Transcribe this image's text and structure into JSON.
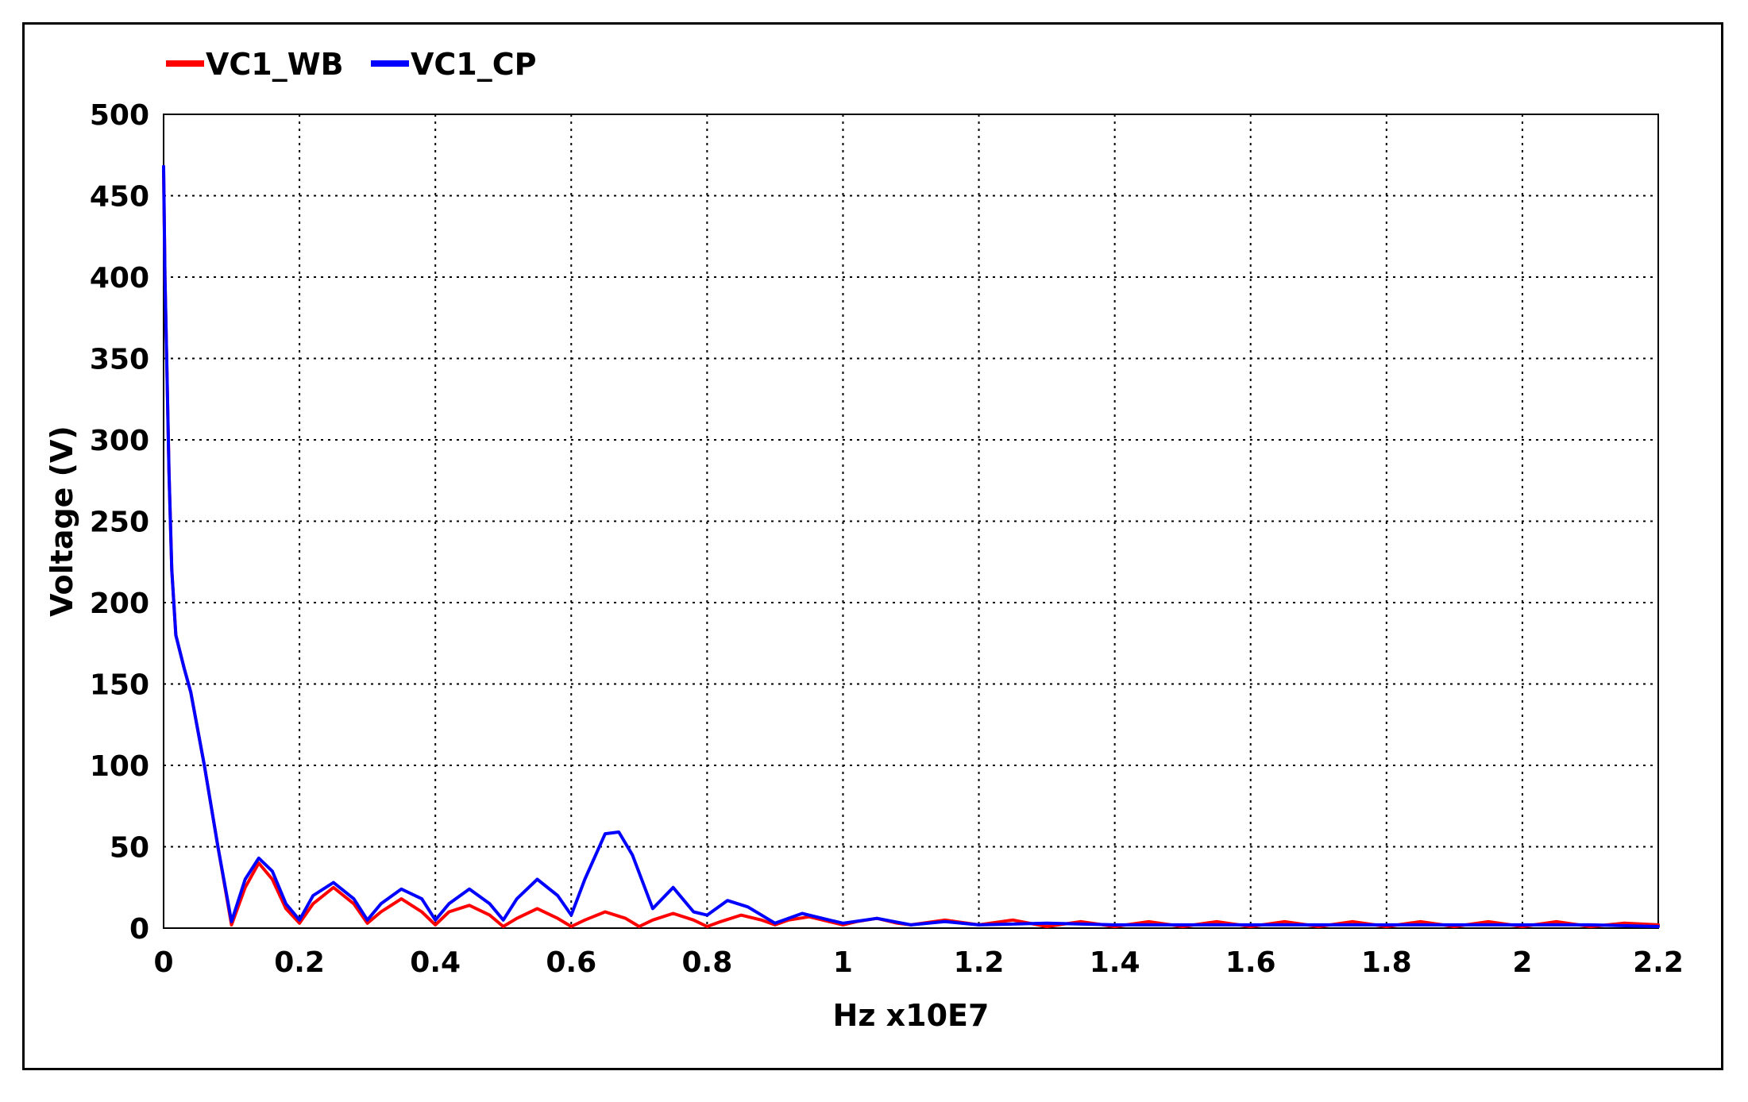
{
  "chart_data": {
    "type": "line",
    "title": "",
    "xlabel": "Hz x10E7",
    "ylabel": "Voltage (V)",
    "xlim": [
      0,
      2.2
    ],
    "ylim": [
      0,
      500
    ],
    "x_ticks": [
      0,
      0.2,
      0.4,
      0.6,
      0.8,
      1,
      1.2,
      1.4,
      1.6,
      1.8,
      2,
      2.2
    ],
    "x_tick_labels": [
      "0",
      "0.2",
      "0.4",
      "0.6",
      "0.8",
      "1",
      "1.2",
      "1.4",
      "1.6",
      "1.8",
      "2",
      "2.2"
    ],
    "y_ticks": [
      0,
      50,
      100,
      150,
      200,
      250,
      300,
      350,
      400,
      450,
      500
    ],
    "y_tick_labels": [
      "0",
      "50",
      "100",
      "150",
      "200",
      "250",
      "300",
      "350",
      "400",
      "450",
      "500"
    ],
    "grid": true,
    "legend_position": "top-left",
    "series": [
      {
        "name": "VC1_WB",
        "color": "#ff0000",
        "x": [
          0,
          0.002,
          0.005,
          0.008,
          0.012,
          0.018,
          0.03,
          0.04,
          0.06,
          0.08,
          0.1,
          0.12,
          0.14,
          0.16,
          0.18,
          0.2,
          0.22,
          0.25,
          0.28,
          0.3,
          0.32,
          0.35,
          0.38,
          0.4,
          0.42,
          0.45,
          0.48,
          0.5,
          0.52,
          0.55,
          0.58,
          0.6,
          0.62,
          0.65,
          0.68,
          0.7,
          0.72,
          0.75,
          0.78,
          0.8,
          0.82,
          0.85,
          0.88,
          0.9,
          0.92,
          0.95,
          0.98,
          1.0,
          1.02,
          1.05,
          1.08,
          1.1,
          1.15,
          1.2,
          1.25,
          1.3,
          1.35,
          1.4,
          1.45,
          1.5,
          1.55,
          1.6,
          1.65,
          1.7,
          1.75,
          1.8,
          1.85,
          1.9,
          1.95,
          2.0,
          2.05,
          2.1,
          2.15,
          2.2
        ],
        "values": [
          465,
          400,
          340,
          280,
          220,
          180,
          160,
          145,
          100,
          50,
          2,
          25,
          40,
          30,
          12,
          3,
          15,
          25,
          15,
          3,
          10,
          18,
          10,
          2,
          10,
          14,
          8,
          1,
          6,
          12,
          6,
          1,
          5,
          10,
          6,
          1,
          5,
          9,
          5,
          1,
          4,
          8,
          5,
          2,
          5,
          7,
          4,
          2,
          4,
          6,
          3,
          2,
          5,
          2,
          5,
          1,
          4,
          1,
          4,
          1,
          4,
          1,
          4,
          1,
          4,
          1,
          4,
          1,
          4,
          1,
          4,
          1,
          3,
          2
        ]
      },
      {
        "name": "VC1_CP",
        "color": "#0000ff",
        "x": [
          0,
          0.002,
          0.005,
          0.008,
          0.012,
          0.018,
          0.03,
          0.04,
          0.06,
          0.08,
          0.1,
          0.12,
          0.14,
          0.16,
          0.18,
          0.2,
          0.22,
          0.25,
          0.28,
          0.3,
          0.32,
          0.35,
          0.38,
          0.4,
          0.42,
          0.45,
          0.48,
          0.5,
          0.52,
          0.55,
          0.58,
          0.6,
          0.62,
          0.65,
          0.67,
          0.69,
          0.72,
          0.75,
          0.78,
          0.8,
          0.83,
          0.86,
          0.9,
          0.94,
          0.98,
          1.0,
          1.05,
          1.1,
          1.15,
          1.2,
          1.3,
          1.4,
          1.5,
          1.6,
          1.7,
          1.8,
          1.9,
          2.0,
          2.1,
          2.2
        ],
        "values": [
          468,
          400,
          340,
          280,
          220,
          180,
          160,
          145,
          100,
          50,
          4,
          30,
          43,
          35,
          15,
          5,
          20,
          28,
          18,
          5,
          15,
          24,
          18,
          5,
          15,
          24,
          15,
          5,
          18,
          30,
          20,
          8,
          30,
          58,
          59,
          45,
          12,
          25,
          10,
          8,
          17,
          13,
          3,
          9,
          5,
          3,
          6,
          2,
          4,
          2,
          3,
          2,
          2,
          2,
          2,
          2,
          2,
          2,
          2,
          1
        ]
      }
    ]
  }
}
